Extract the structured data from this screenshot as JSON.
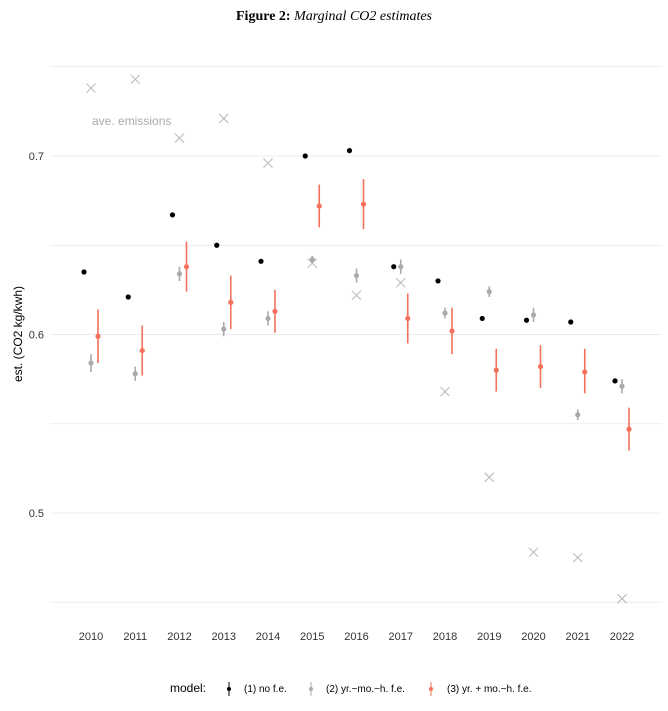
{
  "figure": {
    "label": "Figure 2:",
    "title": "Marginal CO2 estimates"
  },
  "chart_data": {
    "type": "scatter",
    "title": "Marginal CO2 estimates",
    "ylabel": "est. (CO2 kg/kwh)",
    "xlabel": "",
    "categories": [
      "2010",
      "2011",
      "2012",
      "2013",
      "2014",
      "2015",
      "2016",
      "2017",
      "2018",
      "2019",
      "2020",
      "2021",
      "2022"
    ],
    "ylim": [
      0.445,
      0.752
    ],
    "yticks": [
      0.5,
      0.6,
      0.7
    ],
    "ytick_labels": [
      "0.5",
      "0.6",
      "0.7"
    ],
    "grid": true,
    "annotation": "ave. emissions",
    "legend": {
      "title": "model:",
      "position": "bottom",
      "entries": [
        "(1) no f.e.",
        "(2) yr.−mo.−h. f.e.",
        "(3) yr. + mo.−h. f.e."
      ]
    },
    "colors": {
      "m1": "#000000",
      "m2": "#aaaaaa",
      "m3": "#f4705a",
      "ave": "#bbbbbb"
    },
    "series": [
      {
        "name": "(1) no f.e.",
        "values": [
          0.635,
          0.621,
          0.667,
          0.65,
          0.641,
          0.7,
          0.703,
          0.638,
          0.63,
          0.609,
          0.608,
          0.607,
          0.574
        ]
      },
      {
        "name": "(2) yr.−mo.−h. f.e.",
        "values": [
          0.584,
          0.578,
          0.634,
          0.603,
          0.609,
          0.642,
          0.633,
          0.638,
          0.612,
          0.624,
          0.611,
          0.555,
          0.571
        ],
        "ci_low": [
          0.579,
          0.574,
          0.63,
          0.599,
          0.605,
          0.64,
          0.629,
          0.634,
          0.609,
          0.621,
          0.607,
          0.552,
          0.567
        ],
        "ci_high": [
          0.589,
          0.582,
          0.638,
          0.607,
          0.613,
          0.644,
          0.637,
          0.642,
          0.615,
          0.627,
          0.615,
          0.558,
          0.575
        ]
      },
      {
        "name": "(3) yr. + mo.−h. f.e.",
        "values": [
          0.599,
          0.591,
          0.638,
          0.618,
          0.613,
          0.672,
          0.673,
          0.609,
          0.602,
          0.58,
          0.582,
          0.579,
          0.547
        ],
        "ci_low": [
          0.584,
          0.577,
          0.624,
          0.603,
          0.601,
          0.66,
          0.659,
          0.595,
          0.589,
          0.568,
          0.57,
          0.567,
          0.535
        ],
        "ci_high": [
          0.614,
          0.605,
          0.652,
          0.633,
          0.625,
          0.684,
          0.687,
          0.623,
          0.615,
          0.592,
          0.594,
          0.592,
          0.559
        ]
      },
      {
        "name": "ave. emissions",
        "values": [
          0.738,
          0.743,
          0.71,
          0.721,
          0.696,
          0.64,
          0.622,
          0.629,
          0.568,
          0.52,
          0.478,
          0.475,
          0.452
        ]
      }
    ]
  }
}
